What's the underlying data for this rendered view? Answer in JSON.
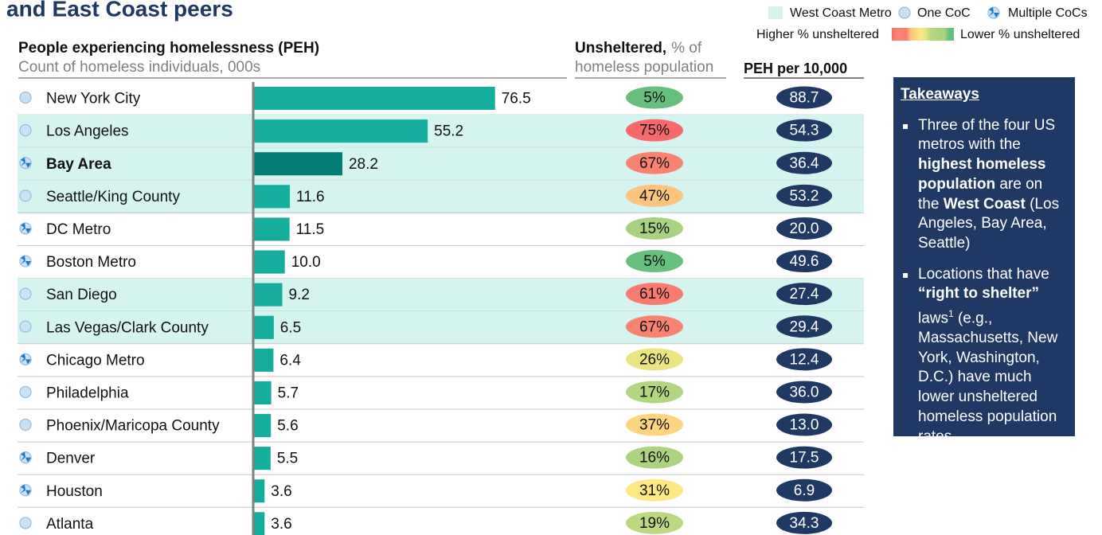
{
  "chart_data": {
    "type": "bar",
    "orientation": "horizontal",
    "title": "and East Coast peers",
    "categories": [
      "New York City",
      "Los Angeles",
      "Bay Area",
      "Seattle/King County",
      "DC Metro",
      "Boston Metro",
      "San Diego",
      "Las Vegas/Clark County",
      "Chicago Metro",
      "Philadelphia",
      "Phoenix/Maricopa County",
      "Denver",
      "Houston",
      "Atlanta"
    ],
    "coc": [
      "one",
      "one",
      "multiple",
      "one",
      "multiple",
      "multiple",
      "one",
      "one",
      "multiple",
      "one",
      "one",
      "multiple",
      "multiple",
      "one"
    ],
    "west_coast": [
      false,
      true,
      true,
      true,
      false,
      false,
      true,
      true,
      false,
      false,
      false,
      false,
      false,
      false
    ],
    "highlight": "Bay Area",
    "values": [
      76.5,
      55.2,
      28.2,
      11.6,
      11.5,
      10.0,
      9.2,
      6.5,
      6.4,
      5.7,
      5.6,
      5.5,
      3.6,
      3.6
    ],
    "value_labels": [
      "76.5",
      "55.2",
      "28.2",
      "11.6",
      "11.5",
      "10.0",
      "9.2",
      "6.5",
      "6.4",
      "5.7",
      "5.6",
      "5.5",
      "3.6",
      "3.6"
    ],
    "color": "#14ad9e",
    "highlight_color": "#027d75",
    "xlim": [
      0,
      100
    ],
    "header": {
      "title": "People experiencing homelessness (PEH)",
      "subtitle": "Count of homeless individuals, 000s"
    },
    "unsheltered": {
      "title": "Unsheltered,",
      "title_rest": "% of",
      "subtitle": "homeless population",
      "values": [
        5,
        75,
        67,
        47,
        15,
        5,
        61,
        67,
        26,
        17,
        37,
        16,
        31,
        19
      ],
      "value_labels": [
        "5%",
        "75%",
        "67%",
        "47%",
        "15%",
        "5%",
        "61%",
        "67%",
        "26%",
        "17%",
        "37%",
        "16%",
        "31%",
        "19%"
      ],
      "colors": [
        "#66bf7c",
        "#f8696b",
        "#f98370",
        "#fcc47c",
        "#a8d27f",
        "#66bf7c",
        "#f97a6e",
        "#f98370",
        "#e9e583",
        "#b2d580",
        "#fdd47f",
        "#add37f",
        "#fde883",
        "#bcd881"
      ]
    },
    "per10k": {
      "title": "PEH per 10,000",
      "values": [
        88.7,
        54.3,
        36.4,
        53.2,
        20.0,
        49.6,
        27.4,
        29.4,
        12.4,
        36.0,
        13.0,
        17.5,
        6.9,
        34.3
      ],
      "value_labels": [
        "88.7",
        "54.3",
        "36.4",
        "53.2",
        "20.0",
        "49.6",
        "27.4",
        "29.4",
        "12.4",
        "36.0",
        "13.0",
        "17.5",
        "6.9",
        "34.3"
      ],
      "color": "#1f3864"
    },
    "legend": {
      "west_coast": "West Coast Metro",
      "one": "One CoC",
      "multiple": "Multiple CoCs",
      "high": "Higher % unsheltered",
      "low": "Lower % unsheltered"
    }
  },
  "takeaways": {
    "title": "Takeaways",
    "bullets": [
      [
        {
          "text": "Three of the four US metros with the "
        },
        {
          "text": "highest homeless population",
          "bold": true
        },
        {
          "text": " are on the "
        },
        {
          "text": "West Coast",
          "bold": true
        },
        {
          "text": " (Los Angeles, Bay Area, Seattle)"
        }
      ],
      [
        {
          "text": "Locations that have "
        },
        {
          "text": "“right to shelter”",
          "bold": true
        },
        {
          "text": " laws"
        },
        {
          "text": "1",
          "sup": true
        },
        {
          "text": " (e.g., Massachusetts, New York, Washington, D.C.) have much lower unsheltered homeless population rates"
        }
      ]
    ]
  }
}
